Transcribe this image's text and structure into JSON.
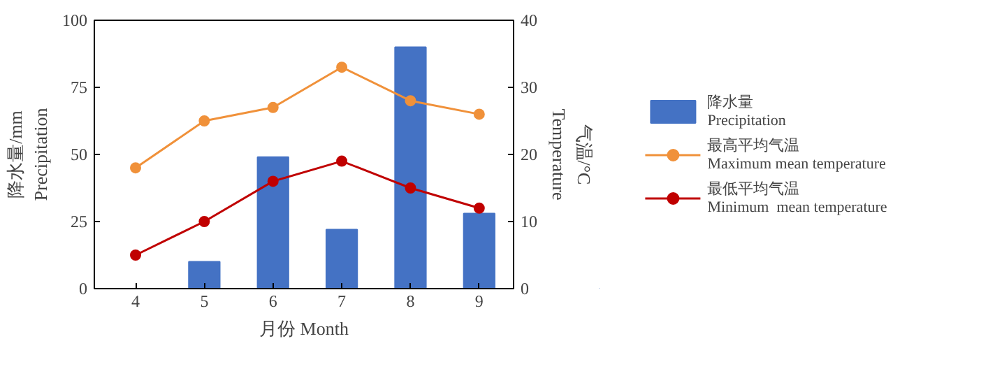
{
  "chart_data": {
    "type": "bar",
    "categories": [
      "4",
      "5",
      "6",
      "7",
      "8",
      "9"
    ],
    "xlabel": "月份 Month",
    "ylabel": "降水量/mm\nPrecipitation",
    "y2label": "气温/°C\nTemperature",
    "ylim": [
      0,
      100
    ],
    "yticks": [
      0,
      25,
      50,
      75,
      100
    ],
    "y2lim": [
      0,
      40
    ],
    "y2ticks": [
      0,
      10,
      20,
      30,
      40
    ],
    "grid": false,
    "legend": "right",
    "series": [
      {
        "name": "降水量\nPrecipitation",
        "color": "#4472c4",
        "values": [
          0,
          10,
          49,
          22,
          90,
          28
        ]
      },
      {
        "name": "最高平均气温\nMaximum mean temperature",
        "type": "line",
        "axis": "y2",
        "marker": "circle",
        "color": "#f0913a",
        "values": [
          18,
          25,
          27,
          33,
          28,
          26
        ]
      },
      {
        "name": "最低平均气温\nMinimum  mean temperature",
        "type": "line",
        "axis": "y2",
        "marker": "circle",
        "color": "#c00000",
        "values": [
          5,
          10,
          16,
          19,
          15,
          12
        ]
      }
    ]
  }
}
